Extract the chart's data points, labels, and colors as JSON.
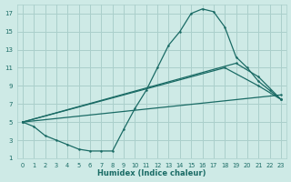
{
  "xlabel": "Humidex (Indice chaleur)",
  "bg_color": "#ceeae6",
  "grid_color": "#aacfcb",
  "line_color": "#1a6b65",
  "xlim": [
    -0.5,
    23.5
  ],
  "ylim": [
    1,
    18
  ],
  "xticks": [
    0,
    1,
    2,
    3,
    4,
    5,
    6,
    7,
    8,
    9,
    10,
    11,
    12,
    13,
    14,
    15,
    16,
    17,
    18,
    19,
    20,
    21,
    22,
    23
  ],
  "yticks": [
    1,
    3,
    5,
    7,
    9,
    11,
    13,
    15,
    17
  ],
  "curve_main_x": [
    0,
    1,
    2,
    3,
    4,
    5,
    6,
    7,
    8,
    9,
    10,
    11,
    12,
    13,
    14,
    15,
    16,
    17,
    18,
    19,
    20,
    21,
    22,
    23
  ],
  "curve_main_y": [
    5,
    4.5,
    3.5,
    3,
    2.5,
    2.0,
    1.8,
    1.8,
    1.8,
    4.2,
    6.5,
    8.5,
    11,
    13.5,
    15,
    17,
    17.5,
    17.2,
    15.5,
    12.2,
    11,
    9.5,
    8.5,
    7.5
  ],
  "curve_line1_x": [
    0,
    23
  ],
  "curve_line1_y": [
    5,
    8
  ],
  "curve_line2_x": [
    0,
    18,
    21,
    23
  ],
  "curve_line2_y": [
    5,
    11,
    9,
    7.5
  ],
  "curve_line3_x": [
    0,
    19,
    21,
    23
  ],
  "curve_line3_y": [
    5,
    11.5,
    10,
    7.5
  ]
}
